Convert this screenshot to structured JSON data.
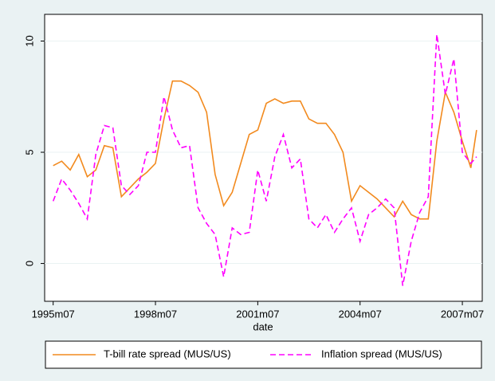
{
  "chart_data": {
    "type": "line",
    "x": [
      "1995m07",
      "1995m10",
      "1996m01",
      "1996m04",
      "1996m07",
      "1996m10",
      "1997m01",
      "1997m04",
      "1997m07",
      "1997m10",
      "1998m01",
      "1998m04",
      "1998m07",
      "1998m10",
      "1999m01",
      "1999m04",
      "1999m07",
      "1999m10",
      "2000m01",
      "2000m04",
      "2000m07",
      "2000m10",
      "2001m01",
      "2001m04",
      "2001m07",
      "2001m10",
      "2002m01",
      "2002m04",
      "2002m07",
      "2002m10",
      "2003m01",
      "2003m04",
      "2003m07",
      "2003m10",
      "2004m01",
      "2004m04",
      "2004m07",
      "2004m10",
      "2005m01",
      "2005m04",
      "2005m07",
      "2005m10",
      "2006m01",
      "2006m04",
      "2006m07",
      "2006m10",
      "2007m01",
      "2007m04",
      "2007m07",
      "2007m10",
      "2007m12"
    ],
    "series": [
      {
        "name": "T-bill rate spread (MUS/US)",
        "color": "#f28a1e",
        "style": "solid",
        "values": [
          4.4,
          4.6,
          4.2,
          4.9,
          3.9,
          4.2,
          5.3,
          5.2,
          3.0,
          3.4,
          3.8,
          4.1,
          4.5,
          6.5,
          8.2,
          8.2,
          8.0,
          7.7,
          6.8,
          4.0,
          2.6,
          3.2,
          4.5,
          5.8,
          6.0,
          7.2,
          7.4,
          7.2,
          7.3,
          7.3,
          6.5,
          6.3,
          6.3,
          5.8,
          5.0,
          2.8,
          3.5,
          3.2,
          2.9,
          2.5,
          2.1,
          2.8,
          2.2,
          2.0,
          2.0,
          5.5,
          7.7,
          6.8,
          5.5,
          4.3,
          6.0
        ]
      },
      {
        "name": "Inflation spread (MUS/US)",
        "color": "#ff00ff",
        "style": "dashed",
        "values": [
          2.8,
          3.8,
          3.3,
          2.7,
          2.0,
          4.9,
          6.2,
          6.1,
          3.5,
          3.1,
          3.5,
          5.0,
          5.0,
          7.5,
          6.0,
          5.2,
          5.3,
          2.5,
          1.8,
          1.3,
          -0.6,
          1.6,
          1.3,
          1.4,
          4.2,
          2.8,
          4.8,
          5.8,
          4.3,
          4.7,
          2.0,
          1.6,
          2.2,
          1.4,
          2.0,
          2.5,
          1.0,
          2.2,
          2.5,
          2.9,
          2.5,
          -1.0,
          1.0,
          2.3,
          3.0,
          10.3,
          7.6,
          9.2,
          5.0,
          4.5,
          4.8
        ]
      }
    ],
    "x_label": "date",
    "xlim": [
      "1995m04",
      "2008m02"
    ],
    "xticks": [
      "1995m07",
      "1998m07",
      "2001m07",
      "2004m07",
      "2007m07"
    ],
    "ylim": [
      -1.7,
      11.2
    ],
    "yticks": [
      0,
      5,
      10
    ],
    "grid": true,
    "legend": "bottom"
  }
}
